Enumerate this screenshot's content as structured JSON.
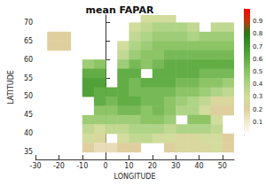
{
  "chart_data": {
    "type": "heatmap",
    "title": "mean FAPAR",
    "xlabel": "LONGITUDE",
    "ylabel": "LATITUDE",
    "xlim": [
      -30,
      55
    ],
    "xticks": [
      -30,
      -20,
      -10,
      0,
      10,
      20,
      30,
      40,
      50
    ],
    "ylim": [
      33,
      72
    ],
    "yticks": [
      35,
      40,
      45,
      50,
      55,
      60,
      65,
      70
    ],
    "cells": {
      "lon": [
        -27.5,
        -22.5,
        -17.5,
        -12.5,
        -7.5,
        -2.5,
        2.5,
        7.5,
        12.5,
        17.5,
        22.5,
        27.5,
        32.5,
        37.5,
        42.5,
        47.5,
        52.5
      ],
      "lat": [
        71.25,
        68.75,
        66.25,
        63.75,
        61.25,
        58.75,
        56.25,
        53.75,
        51.25,
        48.75,
        46.25,
        43.75,
        41.25,
        38.75,
        36.25
      ],
      "values": [
        [
          null,
          null,
          null,
          null,
          null,
          null,
          null,
          null,
          null,
          0.3,
          0.3,
          0.3,
          null,
          null,
          null,
          null,
          null
        ],
        [
          null,
          null,
          null,
          null,
          null,
          null,
          null,
          null,
          0.3,
          0.35,
          0.4,
          0.4,
          0.4,
          0.35,
          null,
          0.35,
          0.35
        ],
        [
          null,
          0.2,
          0.2,
          null,
          null,
          null,
          null,
          null,
          0.35,
          0.4,
          0.45,
          0.45,
          0.45,
          0.4,
          0.45,
          0.45,
          0.45
        ],
        [
          null,
          0.2,
          0.2,
          null,
          null,
          null,
          null,
          0.3,
          0.4,
          0.45,
          0.5,
          0.5,
          0.5,
          0.5,
          0.5,
          0.5,
          0.5
        ],
        [
          null,
          null,
          null,
          null,
          null,
          null,
          null,
          0.35,
          0.45,
          0.5,
          0.5,
          0.55,
          0.55,
          0.55,
          0.55,
          0.55,
          0.55
        ],
        [
          null,
          null,
          null,
          null,
          0.45,
          0.5,
          null,
          0.45,
          0.55,
          0.5,
          0.55,
          0.6,
          0.6,
          0.6,
          0.6,
          0.6,
          0.6
        ],
        [
          null,
          null,
          null,
          null,
          0.6,
          0.6,
          null,
          0.6,
          0.6,
          null,
          0.6,
          0.6,
          0.6,
          0.6,
          0.55,
          0.55,
          0.55
        ],
        [
          null,
          null,
          null,
          null,
          0.65,
          0.65,
          null,
          0.6,
          0.55,
          0.6,
          0.6,
          0.6,
          0.55,
          0.55,
          0.5,
          0.5,
          0.45
        ],
        [
          null,
          null,
          null,
          null,
          0.65,
          0.6,
          0.6,
          0.6,
          0.55,
          0.55,
          0.55,
          0.55,
          0.5,
          0.5,
          0.45,
          0.4,
          0.35
        ],
        [
          null,
          null,
          null,
          null,
          null,
          0.6,
          0.55,
          0.6,
          0.6,
          0.55,
          0.55,
          0.5,
          0.45,
          0.4,
          0.35,
          0.25,
          0.25
        ],
        [
          null,
          null,
          null,
          null,
          null,
          0.5,
          0.5,
          0.55,
          0.55,
          0.5,
          0.55,
          0.5,
          0.4,
          0.4,
          0.3,
          0.2,
          0.2
        ],
        [
          null,
          null,
          null,
          null,
          0.45,
          0.45,
          0.45,
          0.45,
          0.45,
          0.5,
          0.5,
          0.45,
          null,
          0.5,
          0.5,
          0.3,
          null
        ],
        [
          null,
          null,
          null,
          null,
          0.35,
          0.3,
          0.35,
          0.35,
          0.4,
          0.4,
          0.4,
          0.35,
          0.4,
          0.4,
          0.4,
          0.35,
          null
        ],
        [
          null,
          null,
          null,
          null,
          0.3,
          0.25,
          null,
          0.3,
          0.35,
          0.35,
          0.3,
          0.3,
          0.25,
          0.25,
          0.3,
          0.3,
          0.2
        ],
        [
          null,
          null,
          null,
          null,
          0.2,
          0.15,
          0.15,
          0.2,
          0.2,
          null,
          null,
          0.2,
          0.25,
          0.25,
          0.25,
          0.3,
          0.2
        ]
      ]
    },
    "colorbar": {
      "lim": [
        0,
        1
      ],
      "ticks": [
        0.1,
        0.2,
        0.3,
        0.4,
        0.5,
        0.6,
        0.7,
        0.8,
        0.9
      ],
      "colors": [
        "#ffffff",
        "#f3ead2",
        "#dfcf9f",
        "#d2dc9c",
        "#afd487",
        "#8cc466",
        "#62ad45",
        "#3f952f",
        "#267a1c",
        "#b83a0a",
        "#ff0000"
      ]
    }
  }
}
